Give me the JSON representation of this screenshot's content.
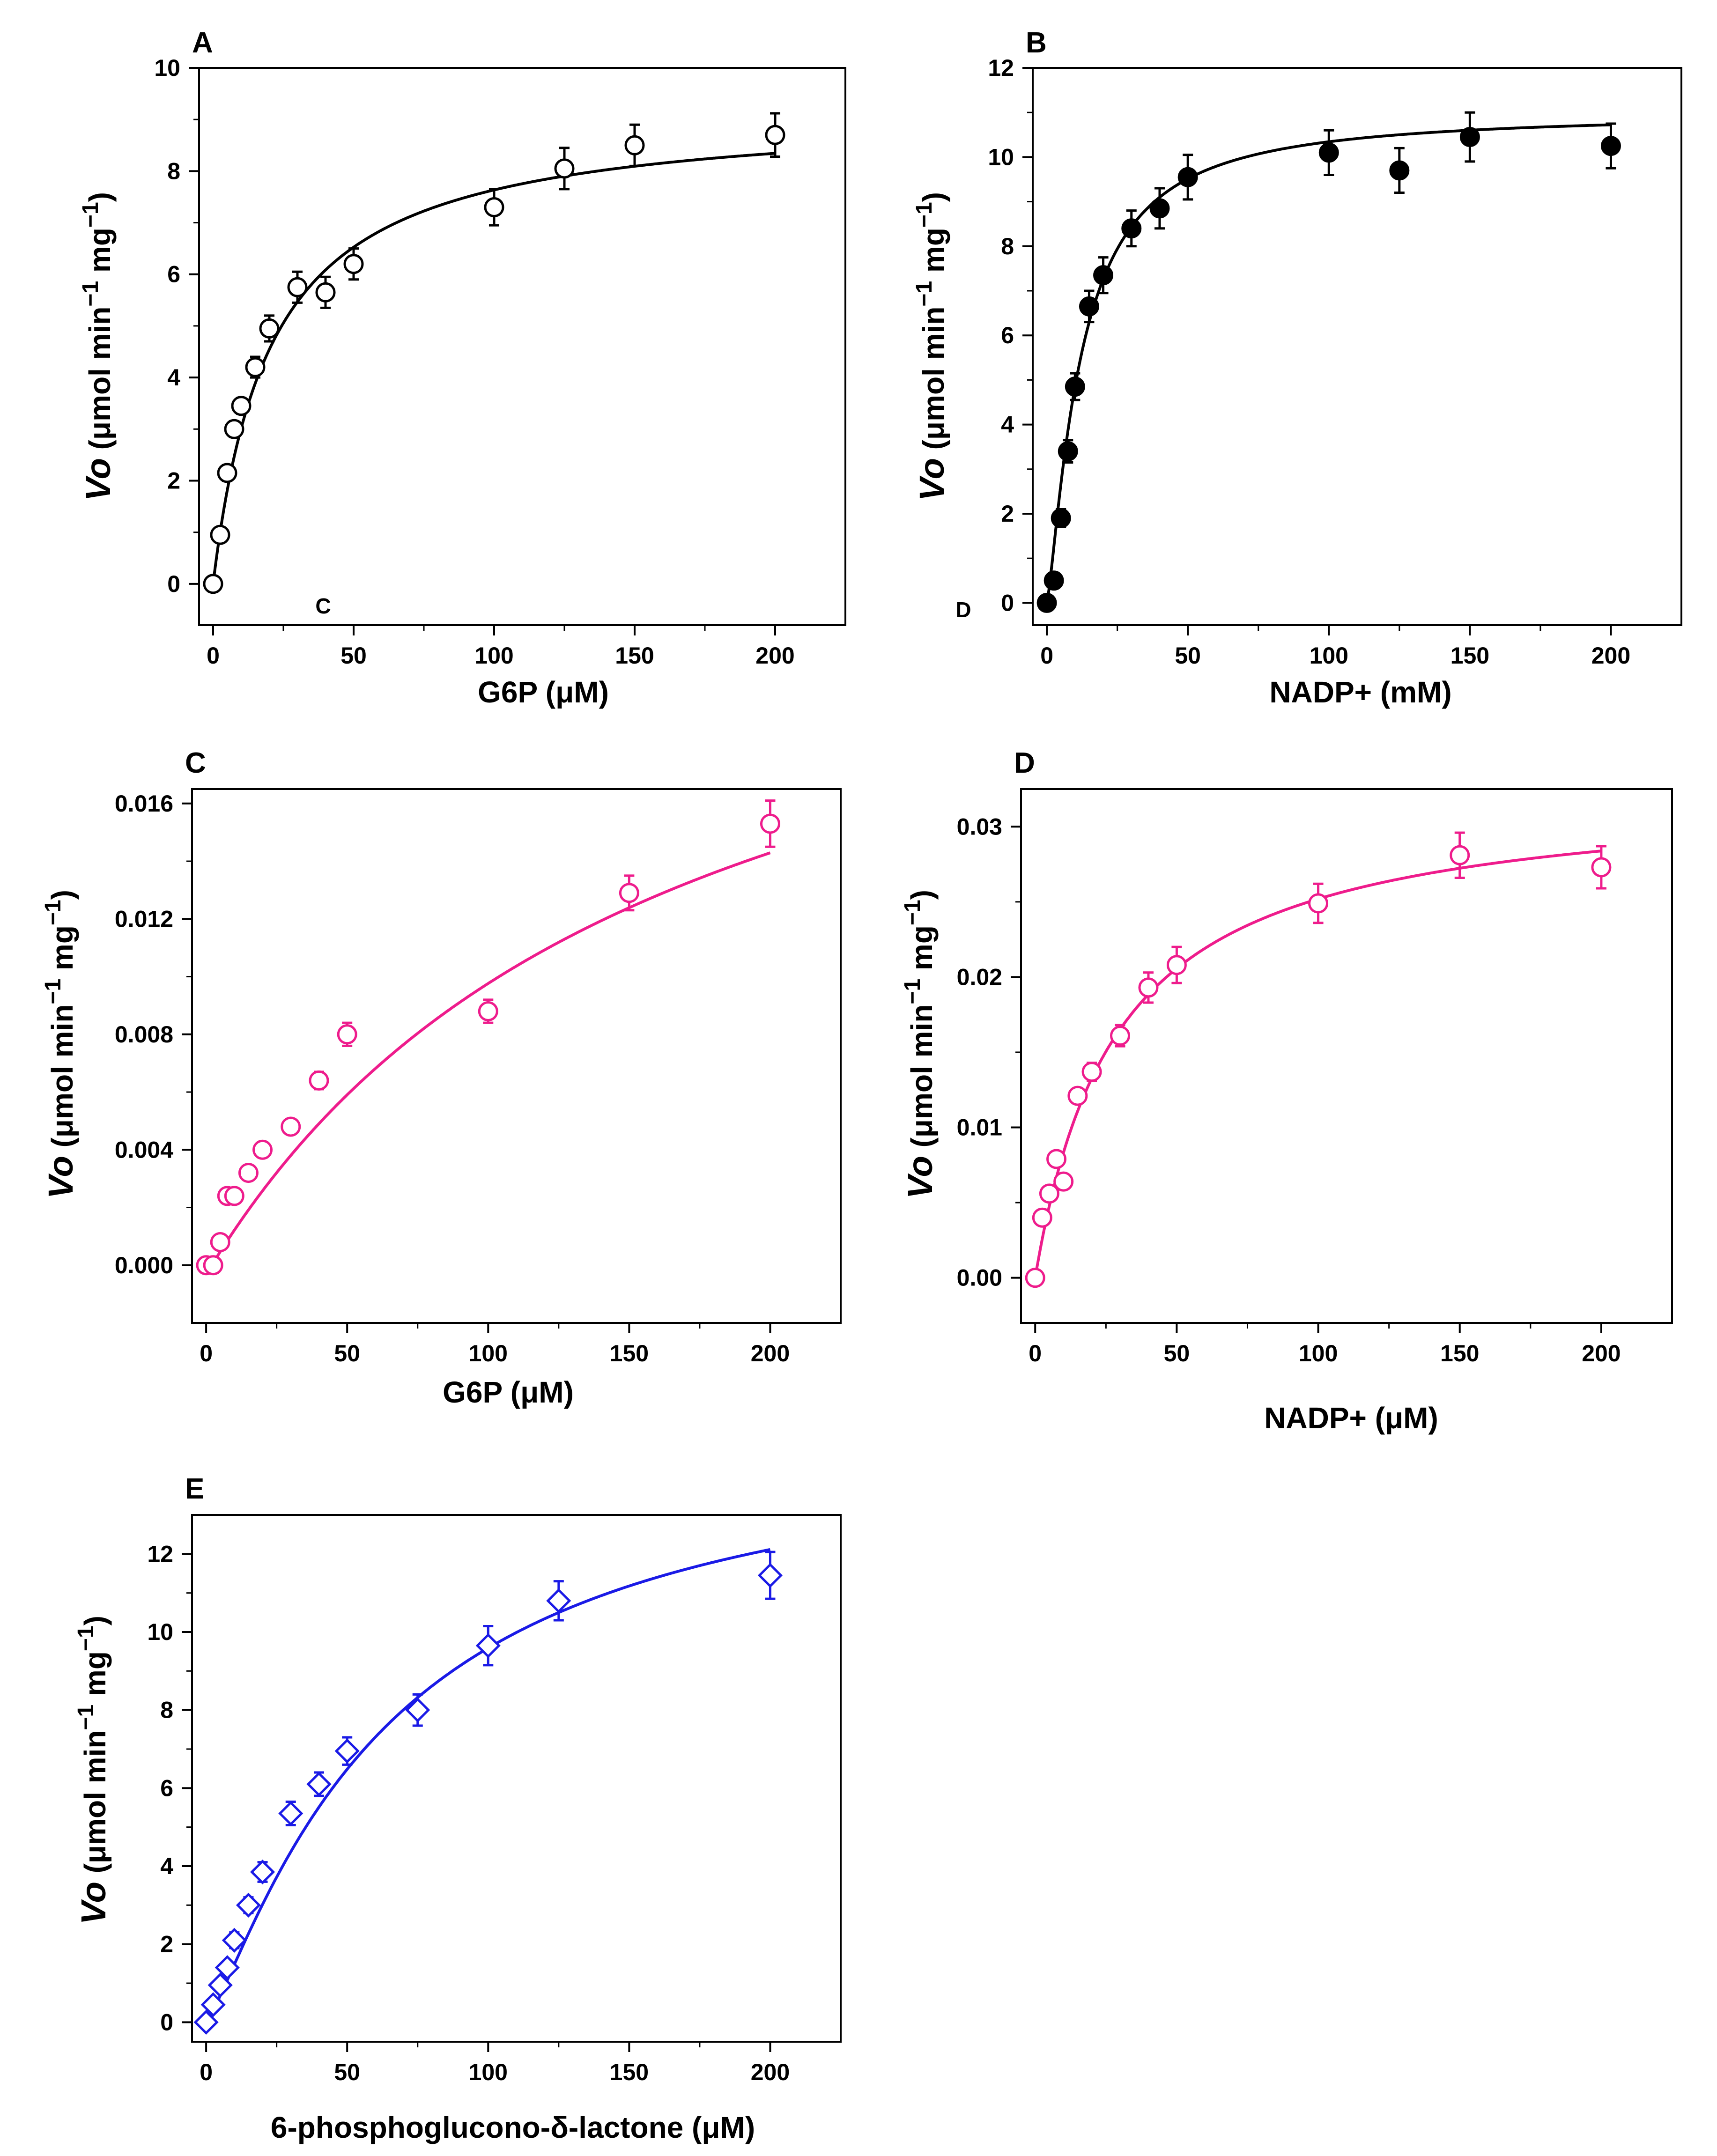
{
  "figure": {
    "panels": [
      "A",
      "B",
      "C",
      "D",
      "E"
    ],
    "y_title": {
      "main": "Vo",
      "unit_open": " (μmol min",
      "exp": "−1",
      "unit_mid": " mg",
      "unit_close": ")"
    },
    "stray_labels": {
      "a": "C",
      "b": "D"
    }
  },
  "chart_data": [
    {
      "panel": "A",
      "type": "scatter",
      "marker": "open-circle",
      "color": "#000000",
      "xlabel": "G6P (μM)",
      "ylabel": "Vo (μmol min−1 mg−1)",
      "xlim": [
        -5,
        225
      ],
      "ylim": [
        -0.8,
        10
      ],
      "xticks": [
        0,
        50,
        100,
        150,
        200
      ],
      "yticks": [
        0,
        2,
        4,
        6,
        8,
        10
      ],
      "x": [
        0,
        2.5,
        5,
        7.5,
        10,
        15,
        20,
        30,
        40,
        50,
        100,
        125,
        150,
        200
      ],
      "y": [
        0,
        0.95,
        2.15,
        3.0,
        3.45,
        4.2,
        4.95,
        5.75,
        5.65,
        6.2,
        7.3,
        8.05,
        8.5,
        8.7
      ],
      "err": [
        0.1,
        0.12,
        0.15,
        0.15,
        0.15,
        0.2,
        0.25,
        0.3,
        0.3,
        0.3,
        0.35,
        0.4,
        0.4,
        0.42
      ],
      "fit": {
        "model": "michaelis-menten",
        "vmax": 9.2,
        "km": 20.5
      }
    },
    {
      "panel": "B",
      "type": "scatter",
      "marker": "filled-circle",
      "color": "#000000",
      "xlabel": "NADP+ (mM)",
      "ylabel": "Vo (μmol min−1 mg−1)",
      "xlim": [
        -5,
        225
      ],
      "ylim": [
        -0.5,
        12
      ],
      "xticks": [
        0,
        50,
        100,
        150,
        200
      ],
      "yticks": [
        0,
        2,
        4,
        6,
        8,
        10,
        12
      ],
      "x": [
        0,
        2.5,
        5,
        7.5,
        10,
        15,
        20,
        30,
        40,
        50,
        100,
        125,
        150,
        200
      ],
      "y": [
        0,
        0.5,
        1.9,
        3.4,
        4.85,
        6.65,
        7.35,
        8.4,
        8.85,
        9.55,
        10.1,
        9.7,
        10.45,
        10.25
      ],
      "err": [
        0.1,
        0.15,
        0.2,
        0.25,
        0.3,
        0.35,
        0.4,
        0.4,
        0.45,
        0.5,
        0.5,
        0.5,
        0.55,
        0.5
      ],
      "fit": {
        "model": "hill",
        "vmax": 11.0,
        "k": 12.0,
        "n": 1.3
      }
    },
    {
      "panel": "C",
      "type": "scatter",
      "marker": "open-circle",
      "color": "#EE1C8C",
      "xlabel": "G6P (μM)",
      "ylabel": "Vo (μmol min−1 mg−1)",
      "xlim": [
        -5,
        225
      ],
      "ylim": [
        -0.002,
        0.0165
      ],
      "xticks": [
        0,
        50,
        100,
        150,
        200
      ],
      "yticks": [
        0.0,
        0.004,
        0.008,
        0.012,
        0.016
      ],
      "yticklabels": [
        "0.000",
        "0.004",
        "0.008",
        "0.012",
        "0.016"
      ],
      "x": [
        0,
        2.5,
        5,
        7.5,
        10,
        15,
        20,
        30,
        40,
        50,
        100,
        150,
        200
      ],
      "y": [
        0,
        0,
        0.0008,
        0.0024,
        0.0024,
        0.0032,
        0.004,
        0.0048,
        0.0064,
        0.008,
        0.0088,
        0.0129,
        0.0153
      ],
      "err": [
        0.0001,
        0.0001,
        0.0002,
        0.0002,
        0.0002,
        0.0002,
        0.0002,
        0.0002,
        0.0003,
        0.0004,
        0.0004,
        0.0006,
        0.0008
      ],
      "fit": {
        "model": "michaelis-menten",
        "vmax": 0.0262,
        "km": 165,
        "x0": 2
      }
    },
    {
      "panel": "D",
      "type": "scatter",
      "marker": "open-circle",
      "color": "#EE1C8C",
      "xlabel": "NADP+ (μM)",
      "ylabel": "Vo (μmol min−1 mg−1)",
      "xlim": [
        -5,
        225
      ],
      "ylim": [
        -0.003,
        0.0325
      ],
      "xticks": [
        0,
        50,
        100,
        150,
        200
      ],
      "yticks": [
        0.0,
        0.01,
        0.02,
        0.03
      ],
      "yticklabels": [
        "0.00",
        "0.01",
        "0.02",
        "0.03"
      ],
      "x": [
        0,
        2.5,
        5,
        7.5,
        10,
        15,
        20,
        30,
        40,
        50,
        100,
        150,
        200
      ],
      "y": [
        0,
        0.004,
        0.0056,
        0.0079,
        0.0064,
        0.0121,
        0.0137,
        0.0161,
        0.0193,
        0.0208,
        0.0249,
        0.0281,
        0.0273
      ],
      "err": [
        0.0002,
        0.0003,
        0.0003,
        0.0004,
        0.0004,
        0.0005,
        0.0006,
        0.0007,
        0.001,
        0.0012,
        0.0013,
        0.0015,
        0.0014
      ],
      "fit": {
        "model": "michaelis-menten",
        "vmax": 0.0325,
        "km": 29
      }
    },
    {
      "panel": "E",
      "type": "scatter",
      "marker": "open-diamond",
      "color": "#1A1AE6",
      "xlabel": "6-phosphoglucono-δ-lactone (μM)",
      "ylabel": "Vo (μmol min−1 mg−1)",
      "xlim": [
        -5,
        225
      ],
      "ylim": [
        -0.5,
        13
      ],
      "xticks": [
        0,
        50,
        100,
        150,
        200
      ],
      "yticks": [
        0,
        2,
        4,
        6,
        8,
        10,
        12
      ],
      "x": [
        0,
        2.5,
        5,
        7.5,
        10,
        15,
        20,
        30,
        40,
        50,
        75,
        100,
        125,
        200
      ],
      "y": [
        0,
        0.45,
        0.95,
        1.4,
        2.1,
        3.0,
        3.85,
        5.35,
        6.1,
        6.95,
        8.0,
        9.65,
        10.8,
        11.45
      ],
      "err": [
        0.1,
        0.12,
        0.15,
        0.15,
        0.2,
        0.2,
        0.25,
        0.3,
        0.3,
        0.35,
        0.4,
        0.5,
        0.5,
        0.6
      ],
      "fit": {
        "model": "hill",
        "vmax": 15.2,
        "k": 64,
        "n": 1.2
      }
    }
  ]
}
